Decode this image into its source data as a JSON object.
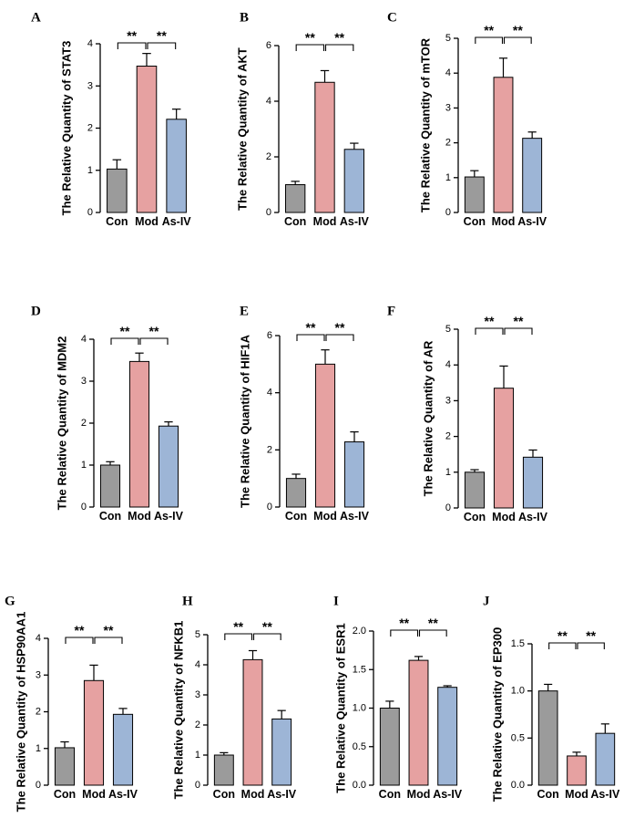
{
  "colors": {
    "Con": "#9b9b9b",
    "Mod": "#e6a1a1",
    "As-IV": "#9db5d6",
    "axis": "#000000"
  },
  "chart_data": [
    {
      "panel": "A",
      "type": "bar",
      "categories": [
        "Con",
        "Mod",
        "As-IV"
      ],
      "values": [
        1.03,
        3.47,
        2.21
      ],
      "errors": [
        0.22,
        0.3,
        0.24
      ],
      "ylabel": "The Relative Quantity of STAT3",
      "ylim": [
        0,
        4
      ],
      "yticks": [
        0,
        1,
        2,
        3,
        4
      ],
      "significance": [
        "**",
        "**"
      ]
    },
    {
      "panel": "B",
      "type": "bar",
      "categories": [
        "Con",
        "Mod",
        "As-IV"
      ],
      "values": [
        1.0,
        4.68,
        2.27
      ],
      "errors": [
        0.12,
        0.42,
        0.22
      ],
      "ylabel": "The Relative Quantity of AKT",
      "ylim": [
        0,
        6
      ],
      "yticks": [
        0,
        2,
        4,
        6
      ],
      "significance": [
        "**",
        "**"
      ]
    },
    {
      "panel": "C",
      "type": "bar",
      "categories": [
        "Con",
        "Mod",
        "As-IV"
      ],
      "values": [
        1.02,
        3.88,
        2.13
      ],
      "errors": [
        0.18,
        0.55,
        0.18
      ],
      "ylabel": "The Relative Quantity of mTOR",
      "ylim": [
        0,
        5
      ],
      "yticks": [
        0,
        1,
        2,
        3,
        4,
        5
      ],
      "significance": [
        "**",
        "**"
      ]
    },
    {
      "panel": "D",
      "type": "bar",
      "categories": [
        "Con",
        "Mod",
        "As-IV"
      ],
      "values": [
        1.0,
        3.47,
        1.93
      ],
      "errors": [
        0.08,
        0.2,
        0.1
      ],
      "ylabel": "The Relative Quantity of MDM2",
      "ylim": [
        0,
        4
      ],
      "yticks": [
        0,
        1,
        2,
        3,
        4
      ],
      "significance": [
        "**",
        "**"
      ]
    },
    {
      "panel": "E",
      "type": "bar",
      "categories": [
        "Con",
        "Mod",
        "As-IV"
      ],
      "values": [
        1.0,
        5.0,
        2.28
      ],
      "errors": [
        0.15,
        0.5,
        0.35
      ],
      "ylabel": "The Relative Quantity of HIF1A",
      "ylim": [
        0,
        6
      ],
      "yticks": [
        0,
        2,
        4,
        6
      ],
      "significance": [
        "**",
        "**"
      ]
    },
    {
      "panel": "F",
      "type": "bar",
      "categories": [
        "Con",
        "Mod",
        "As-IV"
      ],
      "values": [
        1.0,
        3.35,
        1.42
      ],
      "errors": [
        0.07,
        0.62,
        0.2
      ],
      "ylabel": "The Relative Quantity of AR",
      "ylim": [
        0,
        5
      ],
      "yticks": [
        0,
        1,
        2,
        3,
        4,
        5
      ],
      "significance": [
        "**",
        "**"
      ]
    },
    {
      "panel": "G",
      "type": "bar",
      "categories": [
        "Con",
        "Mod",
        "As-IV"
      ],
      "values": [
        1.02,
        2.85,
        1.93
      ],
      "errors": [
        0.16,
        0.42,
        0.16
      ],
      "ylabel": "The Relative Quantity of HSP90AA1",
      "ylim": [
        0,
        4
      ],
      "yticks": [
        0,
        1,
        2,
        3,
        4
      ],
      "significance": [
        "**",
        "**"
      ]
    },
    {
      "panel": "H",
      "type": "bar",
      "categories": [
        "Con",
        "Mod",
        "As-IV"
      ],
      "values": [
        1.0,
        4.17,
        2.2
      ],
      "errors": [
        0.08,
        0.3,
        0.28
      ],
      "ylabel": "The Relative Quantity of NFKB1",
      "ylim": [
        0,
        5
      ],
      "yticks": [
        0,
        1,
        2,
        3,
        4,
        5
      ],
      "significance": [
        "**",
        "**"
      ]
    },
    {
      "panel": "I",
      "type": "bar",
      "categories": [
        "Con",
        "Mod",
        "As-IV"
      ],
      "values": [
        1.0,
        1.62,
        1.27
      ],
      "errors": [
        0.09,
        0.05,
        0.02
      ],
      "ylabel": "The Relative Quantity of ESR1",
      "ylim": [
        0,
        2
      ],
      "yticks": [
        "0.0",
        "0.5",
        "1.0",
        "1.5",
        "2.0"
      ],
      "significance": [
        "**",
        "**"
      ]
    },
    {
      "panel": "J",
      "type": "bar",
      "categories": [
        "Con",
        "Mod",
        "As-IV"
      ],
      "values": [
        1.0,
        0.31,
        0.55
      ],
      "errors": [
        0.07,
        0.04,
        0.1
      ],
      "ylabel": "The Relative Quantity of EP300",
      "ylim": [
        0,
        1.5
      ],
      "yticks": [
        "0.0",
        "0.5",
        "1.0",
        "1.5"
      ],
      "significance": [
        "**",
        "**"
      ]
    }
  ]
}
